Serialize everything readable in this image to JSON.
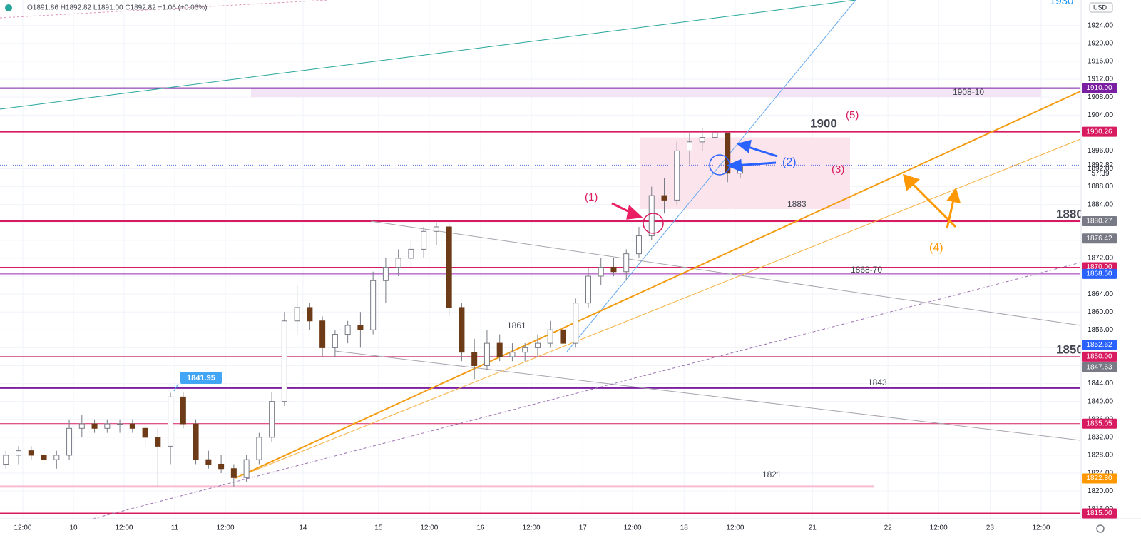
{
  "header": {
    "symbol_info": "O1891.86 H1892.82 L1891.00 C1892.82 +1.06 (+0.06%)",
    "currency": "USD"
  },
  "chart_data": {
    "type": "candlestick",
    "x": [
      -16,
      -13,
      -10,
      -7,
      -4,
      -1,
      2,
      5,
      8,
      11,
      14,
      17,
      20,
      23,
      26,
      29,
      32,
      35,
      38,
      41,
      44,
      47,
      50,
      53,
      56,
      59,
      62,
      65,
      68,
      71,
      74,
      77,
      80,
      83,
      86,
      89,
      92,
      95,
      98,
      101,
      104,
      107,
      110,
      113,
      116,
      119,
      122,
      125,
      128,
      131,
      134,
      137,
      140,
      143,
      146,
      149,
      152,
      155,
      158
    ],
    "open": [
      1826,
      1828,
      1829,
      1828,
      1827,
      1828,
      1834,
      1835,
      1834,
      1835,
      1835,
      1834,
      1832,
      1830,
      1841,
      1835,
      1827,
      1826,
      1825,
      1823,
      1827,
      1832,
      1840,
      1858,
      1861,
      1858,
      1852,
      1855,
      1857,
      1856,
      1867,
      1870,
      1872,
      1874,
      1878,
      1879,
      1861,
      1851,
      1848,
      1853,
      1850,
      1851,
      1852,
      1853,
      1856,
      1853,
      1862,
      1868,
      1870,
      1869,
      1873,
      1877,
      1886,
      1885,
      1896,
      1898,
      1899,
      1900,
      1891
    ],
    "high": [
      1829,
      1830,
      1830,
      1830,
      1829,
      1836,
      1837,
      1836,
      1836,
      1836,
      1836,
      1835,
      1834,
      1841.95,
      1842,
      1836,
      1829,
      1828,
      1826,
      1828,
      1833,
      1842,
      1860,
      1866,
      1862,
      1859,
      1856,
      1858,
      1860,
      1869,
      1872,
      1874,
      1876,
      1879,
      1880,
      1880,
      1862,
      1854,
      1856,
      1855,
      1853,
      1853,
      1855,
      1858,
      1857,
      1863,
      1870,
      1872,
      1872,
      1874,
      1879,
      1888,
      1890,
      1898,
      1900,
      1901,
      1902,
      1900,
      1893
    ],
    "low": [
      1825,
      1826,
      1827,
      1826,
      1825,
      1827,
      1832,
      1833,
      1833,
      1833,
      1833,
      1830,
      1821,
      1826,
      1834,
      1826,
      1825,
      1824,
      1821,
      1822,
      1826,
      1831,
      1839,
      1855,
      1856,
      1850,
      1850,
      1853,
      1852,
      1855,
      1862,
      1868,
      1870,
      1872,
      1875,
      1859,
      1849,
      1845,
      1847,
      1849,
      1849,
      1849,
      1850,
      1852,
      1850,
      1852,
      1861,
      1866,
      1868,
      1867,
      1872,
      1876,
      1882,
      1884,
      1893,
      1896,
      1897,
      1889,
      1890
    ],
    "close": [
      1828,
      1829,
      1828,
      1827,
      1828,
      1834,
      1835,
      1834,
      1835,
      1835,
      1834,
      1832,
      1830,
      1841,
      1835,
      1827,
      1826,
      1825,
      1823,
      1827,
      1832,
      1840,
      1858,
      1861,
      1858,
      1852,
      1855,
      1857,
      1856,
      1867,
      1870,
      1872,
      1874,
      1878,
      1879,
      1861,
      1851,
      1848,
      1853,
      1850,
      1851,
      1852,
      1853,
      1856,
      1853,
      1862,
      1868,
      1870,
      1869,
      1873,
      1877,
      1886,
      1885,
      1896,
      1898,
      1899,
      1900,
      1891,
      1892.82
    ],
    "up_color": "#ffffff",
    "down_color": "#6d3b17",
    "wick_color": "#787b86",
    "xlim": [
      -17.4,
      238.6
    ],
    "xticks": [
      {
        "value": -12,
        "label": "12:00"
      },
      {
        "value": 0,
        "label": "10"
      },
      {
        "value": 12,
        "label": "12:00"
      },
      {
        "value": 24,
        "label": "11"
      },
      {
        "value": 36,
        "label": "12:00"
      },
      {
        "value": 54.4,
        "label": "14"
      },
      {
        "value": 72.3,
        "label": "15"
      },
      {
        "value": 84.3,
        "label": "12:00"
      },
      {
        "value": 96.5,
        "label": "16"
      },
      {
        "value": 108.5,
        "label": "12:00"
      },
      {
        "value": 120.7,
        "label": "17"
      },
      {
        "value": 132.5,
        "label": "12:00"
      },
      {
        "value": 144.7,
        "label": "18"
      },
      {
        "value": 156.8,
        "label": "12:00"
      },
      {
        "value": 175.1,
        "label": "21"
      },
      {
        "value": 193,
        "label": "22"
      },
      {
        "value": 205,
        "label": "12:00"
      },
      {
        "value": 217.2,
        "label": "23"
      },
      {
        "value": 229.3,
        "label": "12:00"
      }
    ],
    "ylim": [
      1813.8,
      1929.7
    ],
    "yticks": [
      {
        "value": 1816,
        "label": "1816.00"
      },
      {
        "value": 1820,
        "label": "1820.00"
      },
      {
        "value": 1824,
        "label": "1824.00"
      },
      {
        "value": 1828,
        "label": "1828.00"
      },
      {
        "value": 1832,
        "label": "1832.00"
      },
      {
        "value": 1836,
        "label": "1836.00"
      },
      {
        "value": 1840,
        "label": "1840.00"
      },
      {
        "value": 1844,
        "label": "1844.00"
      },
      {
        "value": 1848,
        "label": "1848.00"
      },
      {
        "value": 1852,
        "label": "1852.00"
      },
      {
        "value": 1856,
        "label": "1856.00"
      },
      {
        "value": 1860,
        "label": "1860.00"
      },
      {
        "value": 1864,
        "label": "1864.00"
      },
      {
        "value": 1868,
        "label": "1868.00"
      },
      {
        "value": 1872,
        "label": "1872.00"
      },
      {
        "value": 1876,
        "label": "1876.00"
      },
      {
        "value": 1880,
        "label": "1880.00"
      },
      {
        "value": 1884,
        "label": "1884.00"
      },
      {
        "value": 1888,
        "label": "1888.00"
      },
      {
        "value": 1892,
        "label": "1892.00"
      },
      {
        "value": 1896,
        "label": "1896.00"
      },
      {
        "value": 1900,
        "label": "1900.00"
      },
      {
        "value": 1904,
        "label": "1904.00"
      },
      {
        "value": 1908,
        "label": "1908.00"
      },
      {
        "value": 1912,
        "label": "1912.00"
      },
      {
        "value": 1916,
        "label": "1916.00"
      },
      {
        "value": 1920,
        "label": "1920.00"
      },
      {
        "value": 1924,
        "label": "1924.00"
      }
    ],
    "grid": true,
    "levels": [
      {
        "value": 1910,
        "label": "1910.00",
        "color": "#7b1fa2",
        "line_width": 2,
        "badge_color": "#7b1fa2"
      },
      {
        "value": 1900.26,
        "label": "1900.26",
        "color": "#d81b60",
        "line_width": 2,
        "badge_color": "#d81b60"
      },
      {
        "value": 1880.27,
        "label": "1880.27",
        "color": "#d81b60",
        "line_width": 2,
        "badge_color": "#787b86"
      },
      {
        "value": 1870,
        "label": "1870.00",
        "color": "#d81b60",
        "line_width": 1,
        "badge_color": "#d81b60"
      },
      {
        "value": 1868.5,
        "label": "1868.50",
        "color": "#9c27b0",
        "line_width": 1,
        "badge_color": "#2962ff"
      },
      {
        "value": 1850,
        "label": "1850.00",
        "color": "#c2185b",
        "line_width": 1,
        "badge_color": "#d81b60"
      },
      {
        "value": 1843,
        "color": "#7b1fa2",
        "line_width": 2
      },
      {
        "value": 1835.05,
        "label": "1835.05",
        "color": "#d81b60",
        "line_width": 1,
        "badge_color": "#d81b60"
      },
      {
        "value": 1821,
        "color": "#f8bbd0",
        "line_width": 3
      },
      {
        "value": 1815,
        "label": "1815.00",
        "color": "#d81b60",
        "line_width": 2,
        "badge_color": "#d81b60"
      }
    ],
    "price_badges": [
      {
        "value": 1876.42,
        "label": "1876.42",
        "color": "#787b86"
      },
      {
        "value": 1852.62,
        "label": "1852.62",
        "color": "#2962ff"
      },
      {
        "value": 1847.63,
        "label": "1847.63",
        "color": "#787b86"
      },
      {
        "value": 1822.8,
        "label": "1822.80",
        "color": "#ff9800"
      }
    ],
    "zones": [
      {
        "from": 1908,
        "to": 1910,
        "color": "#f3e5f5"
      },
      {
        "from": 1883,
        "to": 1899,
        "color": "#fce4ec"
      }
    ],
    "last_price": {
      "value": 1892.82,
      "label": "1892.82",
      "color": "#5b6ee1"
    },
    "countdown": "57:39",
    "annotations": [
      "1930",
      "1900",
      "(5)",
      "1908-10",
      "1883",
      "1880",
      "1850",
      "1861",
      "1868-70",
      "1843",
      "1821",
      "(1)",
      "(2)",
      "(3)",
      "(4)",
      "1841.95"
    ]
  }
}
